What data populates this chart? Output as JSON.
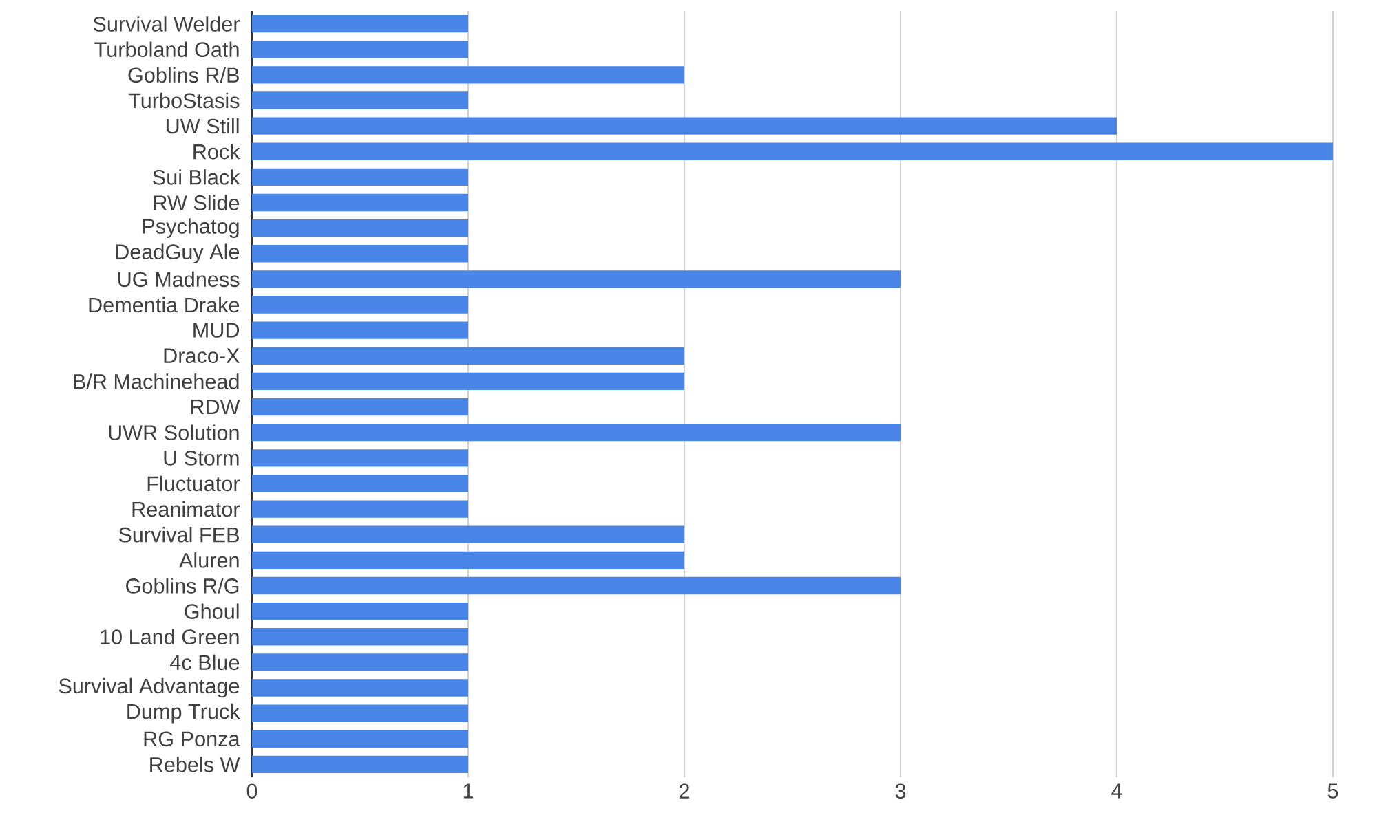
{
  "chart_data": {
    "type": "bar",
    "orientation": "horizontal",
    "categories": [
      "Survival Welder",
      "Turboland Oath",
      "Goblins R/B",
      "TurboStasis",
      "UW Still",
      "Rock",
      "Sui Black",
      "RW Slide",
      "Psychatog",
      "DeadGuy Ale",
      "UG Madness",
      "Dementia Drake",
      "MUD",
      "Draco-X",
      "B/R Machinehead",
      "RDW",
      "UWR Solution",
      "U Storm",
      "Fluctuator",
      "Reanimator",
      "Survival FEB",
      "Aluren",
      "Goblins R/G",
      "Ghoul",
      "10 Land Green",
      "4c Blue",
      "Survival Advantage",
      "Dump Truck",
      "RG Ponza",
      "Rebels W"
    ],
    "values": [
      1,
      1,
      2,
      1,
      4,
      5,
      1,
      1,
      1,
      1,
      3,
      1,
      1,
      2,
      2,
      1,
      3,
      1,
      1,
      1,
      2,
      2,
      3,
      1,
      1,
      1,
      1,
      1,
      1,
      1
    ],
    "color": "#4a86e8",
    "xlim": [
      0,
      5
    ],
    "xticks": [
      0,
      1,
      2,
      3,
      4,
      5
    ],
    "grid": "x"
  }
}
